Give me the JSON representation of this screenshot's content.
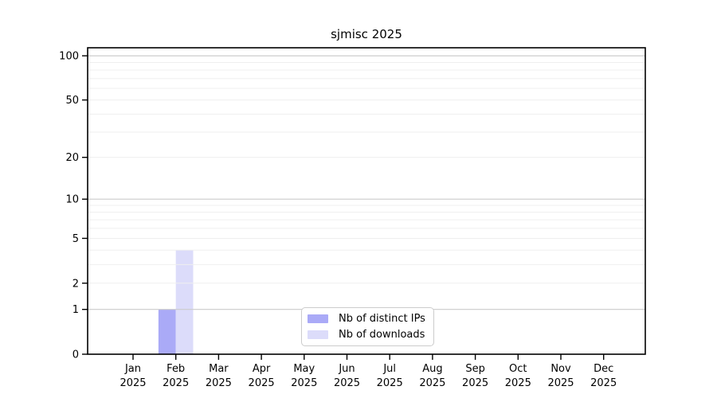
{
  "chart_data": {
    "type": "bar",
    "title": "sjmisc 2025",
    "categories": [
      "Jan",
      "Feb",
      "Mar",
      "Apr",
      "May",
      "Jun",
      "Jul",
      "Aug",
      "Sep",
      "Oct",
      "Nov",
      "Dec"
    ],
    "x_sub_label": "2025",
    "series": [
      {
        "name": "Nb of distinct IPs",
        "color": "#aaaaf7",
        "values": [
          0,
          1,
          0,
          0,
          0,
          0,
          0,
          0,
          0,
          0,
          0,
          0
        ]
      },
      {
        "name": "Nb of downloads",
        "color": "#dcdcfa",
        "values": [
          0,
          4,
          0,
          0,
          0,
          0,
          0,
          0,
          0,
          0,
          0,
          0
        ]
      }
    ],
    "y_scale": "log10(1+x)",
    "y_tick_values": [
      0,
      1,
      2,
      5,
      10,
      20,
      50,
      100
    ],
    "y_tick_labels": [
      "0",
      "1",
      "2",
      "5",
      "10",
      "20",
      "50",
      "100"
    ],
    "major_grid_values": [
      1,
      10,
      100
    ],
    "minor_grid_values": [
      2,
      3,
      4,
      5,
      6,
      7,
      8,
      9,
      20,
      30,
      40,
      50,
      60,
      70,
      80,
      90
    ],
    "ylim": [
      0,
      110
    ],
    "grid": "horizontal",
    "legend_position": "inside-bottom-center",
    "colors": {
      "axis": "#000000",
      "text": "#000000",
      "major_grid": "#cccccc",
      "minor_grid": "#efefef",
      "background": "#ffffff",
      "legend_border": "#cccccc"
    }
  }
}
